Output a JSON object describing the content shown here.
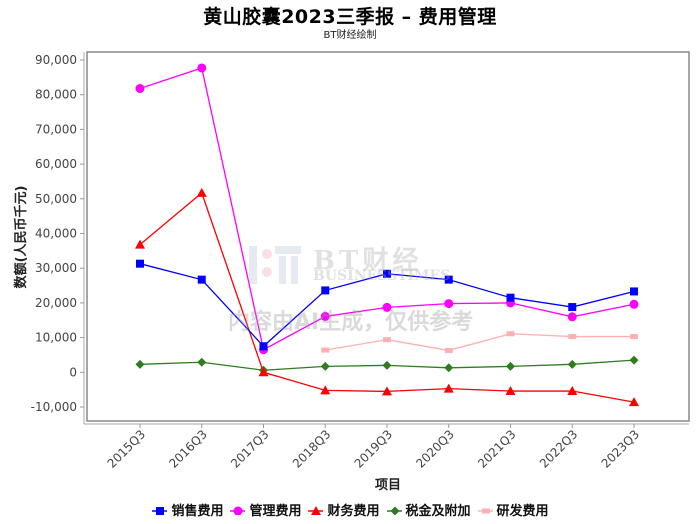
{
  "header": {
    "title": "黄山胶囊2023三季报 – 费用管理",
    "subtitle": "BT财经绘制"
  },
  "watermark": {
    "brand": "BT财经",
    "brand_en": "BUSINESSTIMES",
    "notice": "内容由AI生成，仅供参考"
  },
  "chart_data": {
    "type": "line",
    "title": "黄山胶囊2023三季报 – 费用管理",
    "subtitle": "BT财经绘制",
    "xlabel": "项目",
    "ylabel": "数额(人民币千元)",
    "ylim": [
      -10000,
      90000
    ],
    "yticks": [
      -10000,
      0,
      10000,
      20000,
      30000,
      40000,
      50000,
      60000,
      70000,
      80000,
      90000
    ],
    "ytick_labels": [
      "-10,000",
      "0",
      "10,000",
      "20,000",
      "30,000",
      "40,000",
      "50,000",
      "60,000",
      "70,000",
      "80,000",
      "90,000"
    ],
    "grid": true,
    "legend_position": "bottom",
    "categories": [
      "2015Q3",
      "2016Q3",
      "2017Q3",
      "2018Q3",
      "2019Q3",
      "2020Q3",
      "2021Q3",
      "2022Q3",
      "2023Q3"
    ],
    "series": [
      {
        "name": "销售费用",
        "color": "#0000ff",
        "marker": "square",
        "values": [
          31300,
          26700,
          7500,
          23600,
          28400,
          26700,
          21500,
          18800,
          23300
        ]
      },
      {
        "name": "管理费用",
        "color": "#ff00ff",
        "marker": "circle",
        "values": [
          81800,
          87700,
          6500,
          16100,
          18700,
          19800,
          20000,
          16000,
          19600
        ]
      },
      {
        "name": "财务费用",
        "color": "#ff0000",
        "marker": "triangle",
        "values": [
          36800,
          51700,
          0,
          -5200,
          -5500,
          -4700,
          -5400,
          -5400,
          -8600
        ]
      },
      {
        "name": "税金及附加",
        "color": "#2e7d1f",
        "marker": "diamond",
        "values": [
          2300,
          2900,
          600,
          1700,
          2000,
          1300,
          1700,
          2300,
          3500
        ]
      },
      {
        "name": "研发费用",
        "color": "#ffb0b0",
        "marker": "rect",
        "values": [
          null,
          null,
          null,
          6400,
          9400,
          6300,
          11100,
          10300,
          10300
        ]
      }
    ]
  }
}
